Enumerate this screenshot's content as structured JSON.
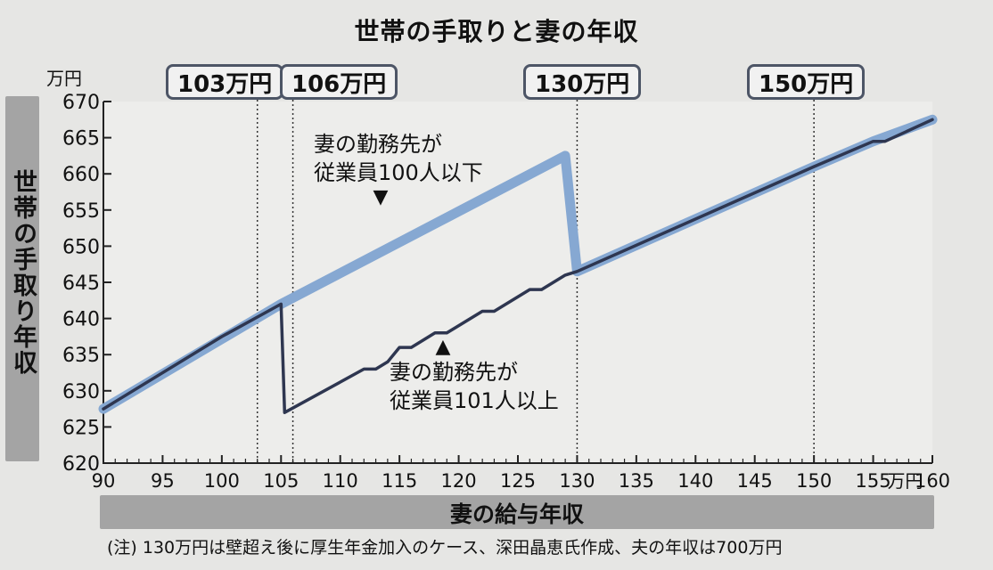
{
  "chart_data": {
    "type": "line",
    "title": "世帯の手取りと妻の年収",
    "xlabel": "妻の給与年収",
    "ylabel": "世帯の手取り年収",
    "x_unit": "万円",
    "y_unit": "万円",
    "xlim": [
      90,
      160
    ],
    "ylim": [
      620,
      670
    ],
    "xticks": [
      90,
      95,
      100,
      105,
      110,
      115,
      120,
      125,
      130,
      135,
      140,
      145,
      150,
      155,
      160
    ],
    "yticks": [
      620,
      625,
      630,
      635,
      640,
      645,
      650,
      655,
      660,
      665,
      670
    ],
    "thresholds": [
      {
        "x": 103,
        "label": "103万円"
      },
      {
        "x": 106,
        "label": "106万円"
      },
      {
        "x": 130,
        "label": "130万円"
      },
      {
        "x": 150,
        "label": "150万円"
      }
    ],
    "series": [
      {
        "name": "妻の勤務先が従業員100人以下",
        "color": "#86a8d2",
        "points": [
          [
            90,
            627.5
          ],
          [
            105,
            642
          ],
          [
            129,
            662.5
          ],
          [
            130,
            646.5
          ],
          [
            150,
            661
          ],
          [
            155,
            664.5
          ],
          [
            160,
            667.5
          ]
        ]
      },
      {
        "name": "妻の勤務先が従業員101人以上",
        "color": "#2e3650",
        "points": [
          [
            90,
            627.5
          ],
          [
            100,
            637.5
          ],
          [
            105,
            642
          ],
          [
            105.3,
            627
          ],
          [
            112,
            633
          ],
          [
            113,
            633
          ],
          [
            114,
            634
          ],
          [
            115,
            636
          ],
          [
            116,
            636
          ],
          [
            118,
            638
          ],
          [
            119,
            638
          ],
          [
            122,
            641
          ],
          [
            123,
            641
          ],
          [
            126,
            644
          ],
          [
            127,
            644
          ],
          [
            129,
            646
          ],
          [
            130,
            646.5
          ],
          [
            150,
            661
          ],
          [
            155,
            664.5
          ],
          [
            156,
            664.5
          ],
          [
            160,
            667.5
          ]
        ]
      }
    ]
  },
  "annotations": {
    "upper": {
      "line1": "妻の勤務先が",
      "line2": "従業員100人以下",
      "arrow": "▼"
    },
    "lower": {
      "arrow": "▲",
      "line1": "妻の勤務先が",
      "line2": "従業員101人以上"
    }
  },
  "note": "(注) 130万円は壁超え後に厚生年金加入のケース、深田晶恵氏作成、夫の年収は700万円"
}
